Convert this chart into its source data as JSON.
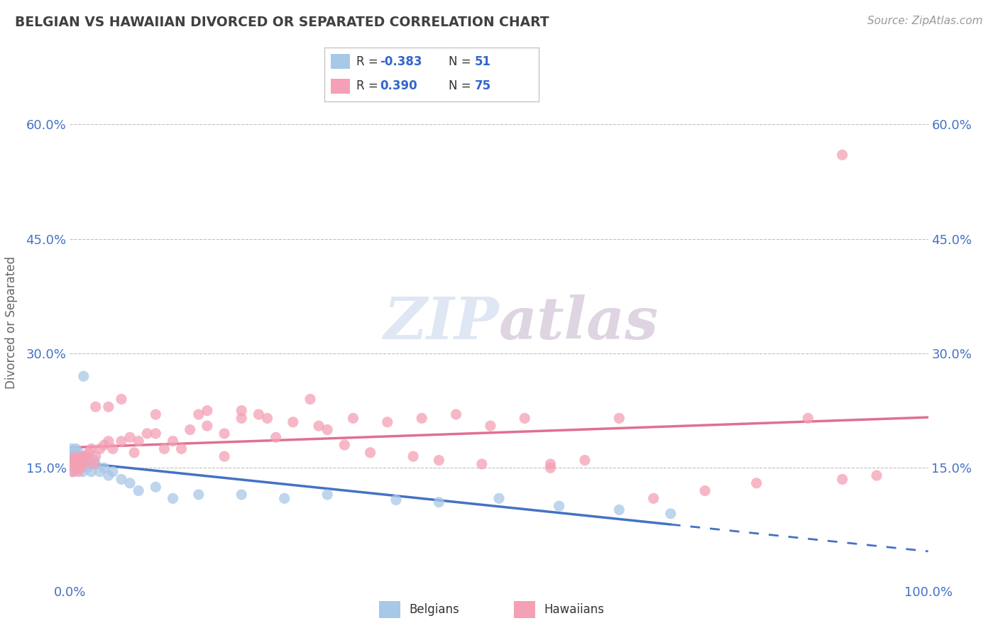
{
  "title": "BELGIAN VS HAWAIIAN DIVORCED OR SEPARATED CORRELATION CHART",
  "source": "Source: ZipAtlas.com",
  "ylabel": "Divorced or Separated",
  "xlim": [
    0.0,
    1.0
  ],
  "ylim": [
    0.0,
    0.68
  ],
  "x_ticks": [
    0.0,
    0.25,
    0.5,
    0.75,
    1.0
  ],
  "x_ticklabels": [
    "0.0%",
    "",
    "",
    "",
    "100.0%"
  ],
  "y_ticks": [
    0.15,
    0.3,
    0.45,
    0.6
  ],
  "y_ticklabels": [
    "15.0%",
    "30.0%",
    "45.0%",
    "60.0%"
  ],
  "watermark_zip": "ZIP",
  "watermark_atlas": "atlas",
  "blue_scatter_color": "#a8c8e8",
  "pink_scatter_color": "#f4a0b5",
  "line_blue": "#4472c4",
  "line_pink": "#e07090",
  "title_color": "#404040",
  "tick_color": "#4472c4",
  "grid_color": "#c0c0c0",
  "legend_r1_label": "R = ",
  "legend_r1_val": "-0.383",
  "legend_n1_label": "N = ",
  "legend_n1_val": "51",
  "legend_r2_label": "R =  ",
  "legend_r2_val": "0.390",
  "legend_n2_label": "N = ",
  "legend_n2_val": "75",
  "belgians_x": [
    0.001,
    0.002,
    0.002,
    0.003,
    0.003,
    0.004,
    0.004,
    0.005,
    0.005,
    0.006,
    0.006,
    0.007,
    0.007,
    0.008,
    0.008,
    0.009,
    0.01,
    0.01,
    0.011,
    0.012,
    0.013,
    0.014,
    0.015,
    0.016,
    0.017,
    0.018,
    0.019,
    0.02,
    0.022,
    0.025,
    0.028,
    0.03,
    0.035,
    0.04,
    0.045,
    0.05,
    0.06,
    0.07,
    0.08,
    0.1,
    0.12,
    0.15,
    0.2,
    0.25,
    0.3,
    0.38,
    0.43,
    0.5,
    0.57,
    0.64,
    0.7
  ],
  "belgians_y": [
    0.165,
    0.16,
    0.175,
    0.155,
    0.17,
    0.16,
    0.145,
    0.165,
    0.155,
    0.17,
    0.15,
    0.165,
    0.175,
    0.155,
    0.165,
    0.15,
    0.16,
    0.17,
    0.155,
    0.165,
    0.15,
    0.16,
    0.145,
    0.27,
    0.16,
    0.165,
    0.155,
    0.15,
    0.155,
    0.145,
    0.16,
    0.155,
    0.145,
    0.15,
    0.14,
    0.145,
    0.135,
    0.13,
    0.12,
    0.125,
    0.11,
    0.115,
    0.115,
    0.11,
    0.115,
    0.108,
    0.105,
    0.11,
    0.1,
    0.095,
    0.09
  ],
  "hawaiians_x": [
    0.001,
    0.002,
    0.003,
    0.004,
    0.005,
    0.006,
    0.007,
    0.008,
    0.009,
    0.01,
    0.011,
    0.012,
    0.013,
    0.014,
    0.016,
    0.018,
    0.02,
    0.022,
    0.025,
    0.028,
    0.03,
    0.035,
    0.04,
    0.045,
    0.05,
    0.06,
    0.07,
    0.08,
    0.09,
    0.1,
    0.12,
    0.14,
    0.16,
    0.18,
    0.2,
    0.23,
    0.26,
    0.29,
    0.33,
    0.37,
    0.41,
    0.45,
    0.49,
    0.53,
    0.56,
    0.6,
    0.64,
    0.68,
    0.74,
    0.8,
    0.86,
    0.9,
    0.94,
    0.1,
    0.15,
    0.2,
    0.28,
    0.35,
    0.43,
    0.13,
    0.18,
    0.24,
    0.3,
    0.06,
    0.03,
    0.045,
    0.075,
    0.11,
    0.16,
    0.22,
    0.32,
    0.4,
    0.48,
    0.56,
    0.9
  ],
  "hawaiians_y": [
    0.155,
    0.16,
    0.145,
    0.155,
    0.15,
    0.165,
    0.155,
    0.15,
    0.16,
    0.145,
    0.16,
    0.15,
    0.155,
    0.165,
    0.155,
    0.165,
    0.16,
    0.17,
    0.175,
    0.155,
    0.165,
    0.175,
    0.18,
    0.185,
    0.175,
    0.185,
    0.19,
    0.185,
    0.195,
    0.195,
    0.185,
    0.2,
    0.205,
    0.195,
    0.215,
    0.215,
    0.21,
    0.205,
    0.215,
    0.21,
    0.215,
    0.22,
    0.205,
    0.215,
    0.155,
    0.16,
    0.215,
    0.11,
    0.12,
    0.13,
    0.215,
    0.135,
    0.14,
    0.22,
    0.22,
    0.225,
    0.24,
    0.17,
    0.16,
    0.175,
    0.165,
    0.19,
    0.2,
    0.24,
    0.23,
    0.23,
    0.17,
    0.175,
    0.225,
    0.22,
    0.18,
    0.165,
    0.155,
    0.15,
    0.56
  ]
}
